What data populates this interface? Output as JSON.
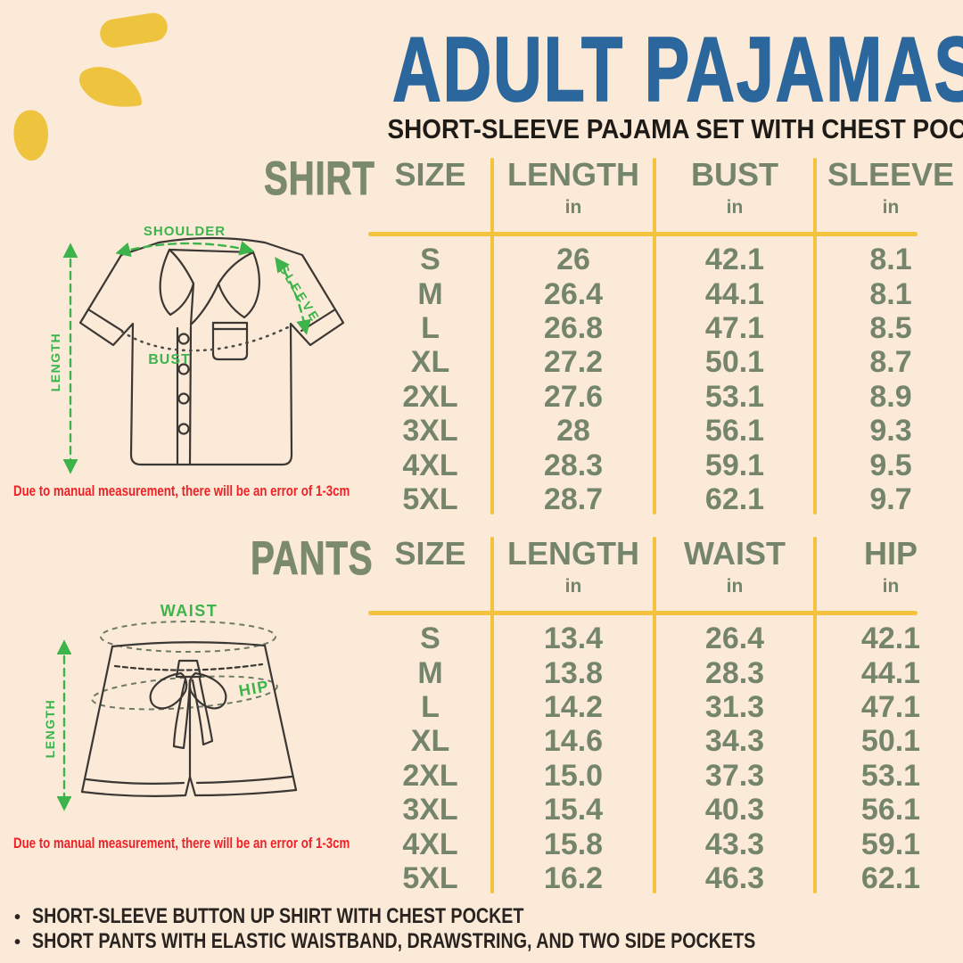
{
  "header": {
    "title": "ADULT PAJAMAS",
    "subtitle": "SHORT-SLEEVE PAJAMA SET WITH CHEST POCKET"
  },
  "shirt": {
    "label": "SHIRT",
    "note": "Due to manual measurement, there will be an error of 1-3cm",
    "diagram_labels": {
      "shoulder": "SHOULDER",
      "sleeve": "SLEEVE",
      "length": "LENGTH",
      "bust": "BUST"
    },
    "table": {
      "columns": [
        {
          "label": "SIZE",
          "unit": ""
        },
        {
          "label": "LENGTH",
          "unit": "in"
        },
        {
          "label": "BUST",
          "unit": "in"
        },
        {
          "label": "SLEEVE",
          "unit": "in"
        }
      ],
      "rows": [
        [
          "S",
          "26",
          "42.1",
          "8.1"
        ],
        [
          "M",
          "26.4",
          "44.1",
          "8.1"
        ],
        [
          "L",
          "26.8",
          "47.1",
          "8.5"
        ],
        [
          "XL",
          "27.2",
          "50.1",
          "8.7"
        ],
        [
          "2XL",
          "27.6",
          "53.1",
          "8.9"
        ],
        [
          "3XL",
          "28",
          "56.1",
          "9.3"
        ],
        [
          "4XL",
          "28.3",
          "59.1",
          "9.5"
        ],
        [
          "5XL",
          "28.7",
          "62.1",
          "9.7"
        ]
      ]
    }
  },
  "pants": {
    "label": "PANTS",
    "note": "Due to manual measurement, there will be an error of 1-3cm",
    "diagram_labels": {
      "waist": "WAIST",
      "hip": "HIP",
      "length": "LENGTH"
    },
    "table": {
      "columns": [
        {
          "label": "SIZE",
          "unit": ""
        },
        {
          "label": "LENGTH",
          "unit": "in"
        },
        {
          "label": "WAIST",
          "unit": "in"
        },
        {
          "label": "HIP",
          "unit": "in"
        }
      ],
      "rows": [
        [
          "S",
          "13.4",
          "26.4",
          "42.1"
        ],
        [
          "M",
          "13.8",
          "28.3",
          "44.1"
        ],
        [
          "L",
          "14.2",
          "31.3",
          "47.1"
        ],
        [
          "XL",
          "14.6",
          "34.3",
          "50.1"
        ],
        [
          "2XL",
          "15.0",
          "37.3",
          "53.1"
        ],
        [
          "3XL",
          "15.4",
          "40.3",
          "56.1"
        ],
        [
          "4XL",
          "15.8",
          "43.3",
          "59.1"
        ],
        [
          "5XL",
          "16.2",
          "46.3",
          "62.1"
        ]
      ]
    }
  },
  "footer": {
    "bullets": [
      "SHORT-SLEEVE BUTTON UP SHIRT WITH CHEST POCKET",
      "SHORT PANTS WITH ELASTIC WAISTBAND, DRAWSTRING, AND TWO SIDE POCKETS"
    ]
  },
  "colors": {
    "background": "#fcead9",
    "title_blue": "#2b679c",
    "sage_green": "#75856b",
    "divider_yellow": "#f4c33d",
    "annotation_green": "#3cb44b",
    "note_red": "#ee2126",
    "ink": "#221e1b"
  }
}
